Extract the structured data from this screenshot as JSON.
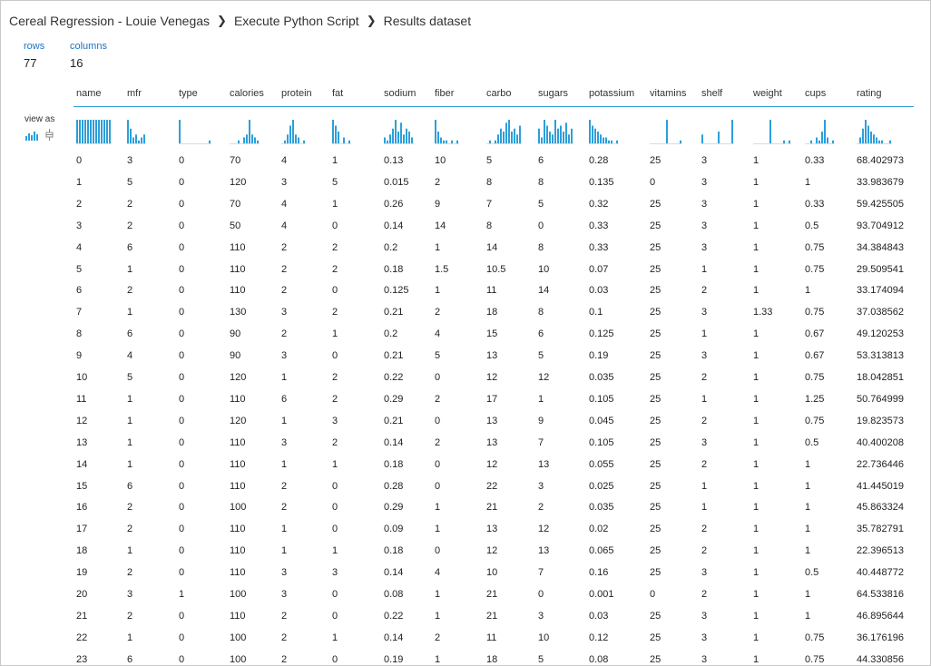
{
  "breadcrumb": [
    "Cereal Regression - Louie Venegas",
    "Execute Python Script",
    "Results dataset"
  ],
  "summary": {
    "rows_label": "rows",
    "rows_value": "77",
    "columns_label": "columns",
    "columns_value": "16"
  },
  "view_as_label": "view as",
  "view_as_icons": [
    "histogram-icon",
    "boxplot-icon"
  ],
  "accent_color": "#2d9fd8",
  "columns": [
    "name",
    "mfr",
    "type",
    "calories",
    "protein",
    "fat",
    "sodium",
    "fiber",
    "carbo",
    "sugars",
    "potassium",
    "vitamins",
    "shelf",
    "weight",
    "cups",
    "rating"
  ],
  "histograms": [
    [
      8,
      8,
      8,
      8,
      8,
      8,
      8,
      8,
      8,
      8,
      8,
      8,
      8
    ],
    [
      8,
      5,
      2,
      3,
      1,
      2,
      3
    ],
    [
      8,
      0,
      0,
      0,
      0,
      0,
      0,
      0,
      0,
      0,
      0,
      1
    ],
    [
      0,
      0,
      0,
      1,
      0,
      2,
      3,
      8,
      3,
      2,
      1
    ],
    [
      0,
      1,
      3,
      6,
      8,
      3,
      2,
      0,
      1
    ],
    [
      8,
      6,
      4,
      0,
      2,
      0,
      1
    ],
    [
      2,
      1,
      3,
      5,
      8,
      4,
      7,
      3,
      5,
      4,
      2
    ],
    [
      8,
      4,
      2,
      1,
      1,
      0,
      1,
      0,
      1
    ],
    [
      0,
      1,
      0,
      1,
      3,
      5,
      4,
      7,
      8,
      4,
      5,
      3,
      6
    ],
    [
      5,
      2,
      8,
      6,
      4,
      3,
      8,
      5,
      6,
      4,
      7,
      3,
      5
    ],
    [
      8,
      6,
      5,
      4,
      3,
      2,
      2,
      1,
      1,
      0,
      1
    ],
    [
      0,
      0,
      0,
      0,
      0,
      0,
      8,
      0,
      0,
      0,
      0,
      1
    ],
    [
      3,
      0,
      0,
      0,
      0,
      0,
      4,
      0,
      0,
      0,
      0,
      8
    ],
    [
      0,
      0,
      0,
      0,
      0,
      0,
      8,
      0,
      0,
      0,
      0,
      1,
      0,
      1
    ],
    [
      0,
      0,
      1,
      0,
      2,
      1,
      4,
      8,
      2,
      0,
      1
    ],
    [
      0,
      2,
      5,
      8,
      6,
      4,
      3,
      2,
      1,
      1,
      0,
      0,
      1
    ]
  ],
  "rows": [
    [
      "0",
      "3",
      "0",
      "70",
      "4",
      "1",
      "0.13",
      "10",
      "5",
      "6",
      "0.28",
      "25",
      "3",
      "1",
      "0.33",
      "68.402973"
    ],
    [
      "1",
      "5",
      "0",
      "120",
      "3",
      "5",
      "0.015",
      "2",
      "8",
      "8",
      "0.135",
      "0",
      "3",
      "1",
      "1",
      "33.983679"
    ],
    [
      "2",
      "2",
      "0",
      "70",
      "4",
      "1",
      "0.26",
      "9",
      "7",
      "5",
      "0.32",
      "25",
      "3",
      "1",
      "0.33",
      "59.425505"
    ],
    [
      "3",
      "2",
      "0",
      "50",
      "4",
      "0",
      "0.14",
      "14",
      "8",
      "0",
      "0.33",
      "25",
      "3",
      "1",
      "0.5",
      "93.704912"
    ],
    [
      "4",
      "6",
      "0",
      "110",
      "2",
      "2",
      "0.2",
      "1",
      "14",
      "8",
      "0.33",
      "25",
      "3",
      "1",
      "0.75",
      "34.384843"
    ],
    [
      "5",
      "1",
      "0",
      "110",
      "2",
      "2",
      "0.18",
      "1.5",
      "10.5",
      "10",
      "0.07",
      "25",
      "1",
      "1",
      "0.75",
      "29.509541"
    ],
    [
      "6",
      "2",
      "0",
      "110",
      "2",
      "0",
      "0.125",
      "1",
      "11",
      "14",
      "0.03",
      "25",
      "2",
      "1",
      "1",
      "33.174094"
    ],
    [
      "7",
      "1",
      "0",
      "130",
      "3",
      "2",
      "0.21",
      "2",
      "18",
      "8",
      "0.1",
      "25",
      "3",
      "1.33",
      "0.75",
      "37.038562"
    ],
    [
      "8",
      "6",
      "0",
      "90",
      "2",
      "1",
      "0.2",
      "4",
      "15",
      "6",
      "0.125",
      "25",
      "1",
      "1",
      "0.67",
      "49.120253"
    ],
    [
      "9",
      "4",
      "0",
      "90",
      "3",
      "0",
      "0.21",
      "5",
      "13",
      "5",
      "0.19",
      "25",
      "3",
      "1",
      "0.67",
      "53.313813"
    ],
    [
      "10",
      "5",
      "0",
      "120",
      "1",
      "2",
      "0.22",
      "0",
      "12",
      "12",
      "0.035",
      "25",
      "2",
      "1",
      "0.75",
      "18.042851"
    ],
    [
      "11",
      "1",
      "0",
      "110",
      "6",
      "2",
      "0.29",
      "2",
      "17",
      "1",
      "0.105",
      "25",
      "1",
      "1",
      "1.25",
      "50.764999"
    ],
    [
      "12",
      "1",
      "0",
      "120",
      "1",
      "3",
      "0.21",
      "0",
      "13",
      "9",
      "0.045",
      "25",
      "2",
      "1",
      "0.75",
      "19.823573"
    ],
    [
      "13",
      "1",
      "0",
      "110",
      "3",
      "2",
      "0.14",
      "2",
      "13",
      "7",
      "0.105",
      "25",
      "3",
      "1",
      "0.5",
      "40.400208"
    ],
    [
      "14",
      "1",
      "0",
      "110",
      "1",
      "1",
      "0.18",
      "0",
      "12",
      "13",
      "0.055",
      "25",
      "2",
      "1",
      "1",
      "22.736446"
    ],
    [
      "15",
      "6",
      "0",
      "110",
      "2",
      "0",
      "0.28",
      "0",
      "22",
      "3",
      "0.025",
      "25",
      "1",
      "1",
      "1",
      "41.445019"
    ],
    [
      "16",
      "2",
      "0",
      "100",
      "2",
      "0",
      "0.29",
      "1",
      "21",
      "2",
      "0.035",
      "25",
      "1",
      "1",
      "1",
      "45.863324"
    ],
    [
      "17",
      "2",
      "0",
      "110",
      "1",
      "0",
      "0.09",
      "1",
      "13",
      "12",
      "0.02",
      "25",
      "2",
      "1",
      "1",
      "35.782791"
    ],
    [
      "18",
      "1",
      "0",
      "110",
      "1",
      "1",
      "0.18",
      "0",
      "12",
      "13",
      "0.065",
      "25",
      "2",
      "1",
      "1",
      "22.396513"
    ],
    [
      "19",
      "2",
      "0",
      "110",
      "3",
      "3",
      "0.14",
      "4",
      "10",
      "7",
      "0.16",
      "25",
      "3",
      "1",
      "0.5",
      "40.448772"
    ],
    [
      "20",
      "3",
      "1",
      "100",
      "3",
      "0",
      "0.08",
      "1",
      "21",
      "0",
      "0.001",
      "0",
      "2",
      "1",
      "1",
      "64.533816"
    ],
    [
      "21",
      "2",
      "0",
      "110",
      "2",
      "0",
      "0.22",
      "1",
      "21",
      "3",
      "0.03",
      "25",
      "3",
      "1",
      "1",
      "46.895644"
    ],
    [
      "22",
      "1",
      "0",
      "100",
      "2",
      "1",
      "0.14",
      "2",
      "11",
      "10",
      "0.12",
      "25",
      "3",
      "1",
      "0.75",
      "36.176196"
    ],
    [
      "23",
      "6",
      "0",
      "100",
      "2",
      "0",
      "0.19",
      "1",
      "18",
      "5",
      "0.08",
      "25",
      "3",
      "1",
      "0.75",
      "44.330856"
    ]
  ]
}
